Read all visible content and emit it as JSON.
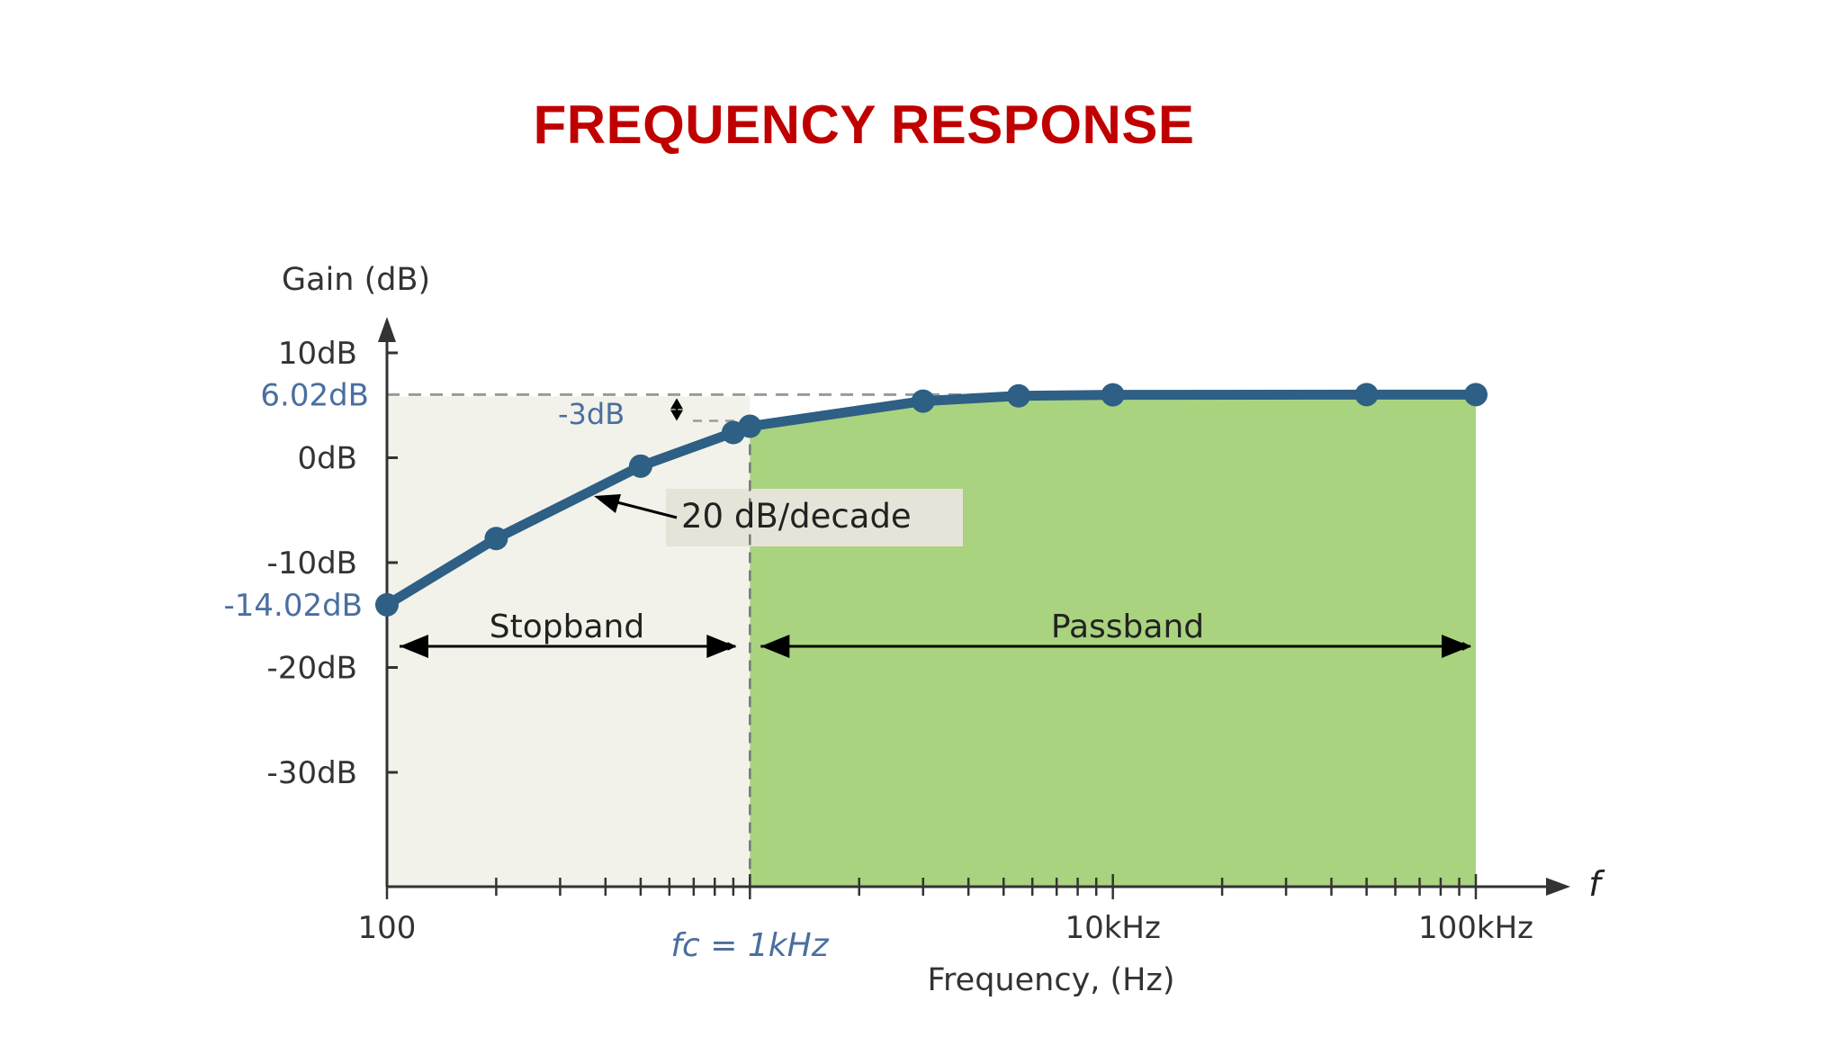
{
  "page": {
    "title": "FREQUENCY RESPONSE",
    "title_color": "#c00000"
  },
  "chart_data": {
    "type": "line",
    "title": "",
    "xlabel": "Frequency, (Hz)",
    "ylabel": "Gain (dB)",
    "x_scale": "log",
    "xlim": [
      100,
      100000
    ],
    "ylim": [
      -40,
      12
    ],
    "x_ticks": [
      {
        "value": 100,
        "label": "100"
      },
      {
        "value": 10000,
        "label": "10kHz"
      },
      {
        "value": 100000,
        "label": "100kHz"
      }
    ],
    "y_ticks": [
      {
        "value": 10,
        "label": "10dB"
      },
      {
        "value": 0,
        "label": "0dB"
      },
      {
        "value": -10,
        "label": "-10dB"
      },
      {
        "value": -20,
        "label": "-20dB"
      },
      {
        "value": -30,
        "label": "-30dB"
      }
    ],
    "series": [
      {
        "x": [
          100,
          200,
          500,
          900,
          1000,
          3000,
          5500,
          10000,
          50000,
          100000
        ],
        "y": [
          -14.02,
          -7.7,
          -0.8,
          2.4,
          3.0,
          5.4,
          5.9,
          6.0,
          6.02,
          6.02
        ]
      }
    ],
    "annotations": {
      "gain_max_label": "6.02dB",
      "gain_min_label": "-14.02dB",
      "gain_max_value": 6.02,
      "gain_min_value": -14.02,
      "minus3db_label": "-3dB",
      "slope_label": "20 dB/decade",
      "stopband_label": "Stopband",
      "passband_label": "Passband",
      "fc_label": "fc = 1kHz",
      "fc_value": 1000,
      "f_axis_label": "f"
    },
    "grid": false,
    "colors": {
      "line": "#2e5f85",
      "annotation": "#4a6fa0",
      "passband_fill": "#a9d37e",
      "stopband_fill": "#f2f2ea",
      "axis": "#333333"
    }
  }
}
